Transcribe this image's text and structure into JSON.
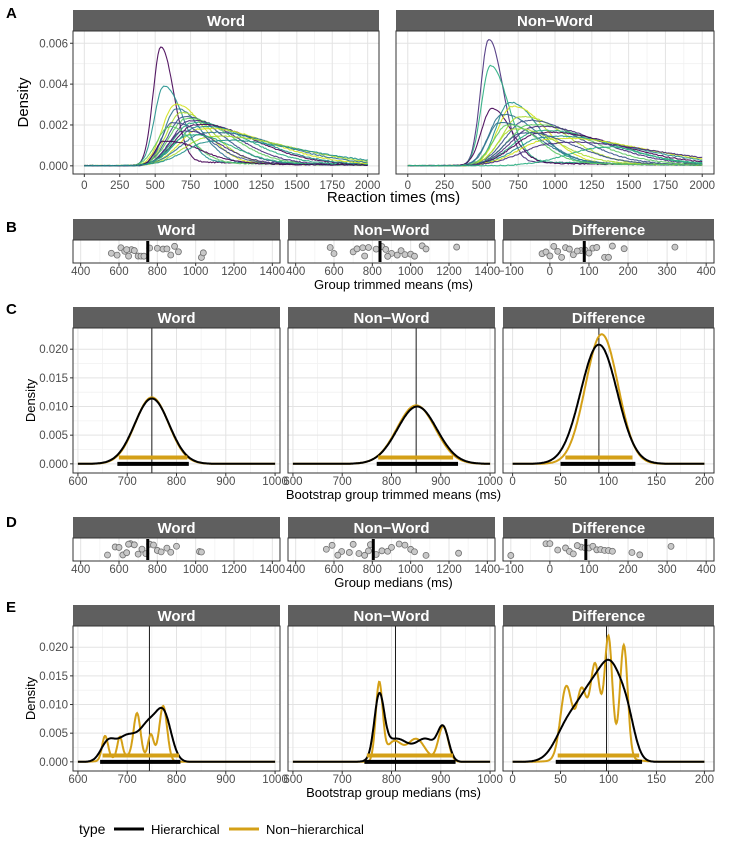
{
  "colors": {
    "strip_bg": "#5f5f5f",
    "strip_text": "#ffffff",
    "panel_border": "#333333",
    "grid_major": "#e3e3e3",
    "grid_minor": "#f1f1f1",
    "hierarchical": "#000000",
    "non_hierarchical": "#d4a017",
    "point_fill": "#c8c8c8",
    "point_stroke": "#707070",
    "viridis": [
      "#440154",
      "#472d7b",
      "#3b528b",
      "#2c728e",
      "#21918c",
      "#28ae80",
      "#5ec962",
      "#addc30",
      "#d2e21b"
    ]
  },
  "legend": {
    "title": "type",
    "items": [
      {
        "label": "Hierarchical",
        "color": "#000000"
      },
      {
        "label": "Non−hierarchical",
        "color": "#d4a017"
      }
    ]
  },
  "chart_data": [
    {
      "panel_letter": "A",
      "type": "line",
      "description_kind": "individual_densities",
      "facets": [
        "Word",
        "Non−Word"
      ],
      "xlabel": "Reaction times (ms)",
      "ylabel": "Density",
      "xlim": [
        -80,
        2080
      ],
      "ylim": [
        -0.0004,
        0.0066
      ],
      "xticks": [
        0,
        250,
        500,
        750,
        1000,
        1250,
        1500,
        1750,
        2000
      ],
      "xtick_labels": [
        "0",
        "250",
        "500",
        "750",
        "1000",
        "1250",
        "1500",
        "1750",
        "2000"
      ],
      "yticks": [
        0,
        0.002,
        0.004,
        0.006
      ],
      "ytick_labels": [
        "0.000",
        "0.002",
        "0.004",
        "0.006"
      ],
      "series_by_facet": [
        [
          {
            "mode": 540,
            "peak": 0.0058,
            "sl": 55,
            "sr": 90,
            "tail": 0.0003
          },
          {
            "mode": 560,
            "peak": 0.0039,
            "sl": 65,
            "sr": 130,
            "tail": 0.0003
          },
          {
            "mode": 640,
            "peak": 0.003,
            "sl": 90,
            "sr": 200,
            "tail": 0.0002
          },
          {
            "mode": 650,
            "peak": 0.0028,
            "sl": 85,
            "sr": 170,
            "tail": 0.0002
          },
          {
            "mode": 680,
            "peak": 0.0026,
            "sl": 100,
            "sr": 220,
            "tail": 0.0002
          },
          {
            "mode": 700,
            "peak": 0.0024,
            "sl": 110,
            "sr": 260,
            "tail": 0.0002
          },
          {
            "mode": 720,
            "peak": 0.0023,
            "sl": 120,
            "sr": 300,
            "tail": 0.0002
          },
          {
            "mode": 740,
            "peak": 0.0022,
            "sl": 120,
            "sr": 320,
            "tail": 0.0002
          },
          {
            "mode": 760,
            "peak": 0.0021,
            "sl": 130,
            "sr": 360,
            "tail": 0.0002
          },
          {
            "mode": 780,
            "peak": 0.002,
            "sl": 140,
            "sr": 400,
            "tail": 0.0002
          },
          {
            "mode": 800,
            "peak": 0.0019,
            "sl": 150,
            "sr": 420,
            "tail": 0.0002
          },
          {
            "mode": 820,
            "peak": 0.0018,
            "sl": 150,
            "sr": 460,
            "tail": 0.0002
          },
          {
            "mode": 850,
            "peak": 0.0016,
            "sl": 170,
            "sr": 500,
            "tail": 0.0002
          },
          {
            "mode": 880,
            "peak": 0.0014,
            "sl": 180,
            "sr": 550,
            "tail": 0.0002
          },
          {
            "mode": 620,
            "peak": 0.0021,
            "sl": 80,
            "sr": 240,
            "tail": 0.0002
          },
          {
            "mode": 600,
            "peak": 0.0019,
            "sl": 90,
            "sr": 160,
            "tail": 0.0002
          },
          {
            "mode": 700,
            "peak": 0.0017,
            "sl": 110,
            "sr": 240,
            "tail": 0.0002
          },
          {
            "mode": 740,
            "peak": 0.0015,
            "sl": 130,
            "sr": 280,
            "tail": 0.0002
          },
          {
            "mode": 560,
            "peak": 0.0012,
            "sl": 60,
            "sr": 240,
            "tail": 0.0002
          },
          {
            "mode": 900,
            "peak": 0.0012,
            "sl": 190,
            "sr": 600,
            "tail": 0.0002
          }
        ],
        [
          {
            "mode": 550,
            "peak": 0.0062,
            "sl": 55,
            "sr": 95,
            "tail": 0.0003
          },
          {
            "mode": 560,
            "peak": 0.0049,
            "sl": 60,
            "sr": 120,
            "tail": 0.0003
          },
          {
            "mode": 570,
            "peak": 0.0028,
            "sl": 70,
            "sr": 130,
            "tail": 0.0002
          },
          {
            "mode": 690,
            "peak": 0.0031,
            "sl": 90,
            "sr": 190,
            "tail": 0.0002
          },
          {
            "mode": 710,
            "peak": 0.0029,
            "sl": 100,
            "sr": 220,
            "tail": 0.0002
          },
          {
            "mode": 640,
            "peak": 0.0025,
            "sl": 90,
            "sr": 240,
            "tail": 0.0002
          },
          {
            "mode": 760,
            "peak": 0.0024,
            "sl": 120,
            "sr": 300,
            "tail": 0.0002
          },
          {
            "mode": 800,
            "peak": 0.0022,
            "sl": 140,
            "sr": 340,
            "tail": 0.0002
          },
          {
            "mode": 830,
            "peak": 0.002,
            "sl": 150,
            "sr": 380,
            "tail": 0.0002
          },
          {
            "mode": 860,
            "peak": 0.0019,
            "sl": 160,
            "sr": 420,
            "tail": 0.0002
          },
          {
            "mode": 880,
            "peak": 0.0017,
            "sl": 170,
            "sr": 460,
            "tail": 0.0002
          },
          {
            "mode": 900,
            "peak": 0.0016,
            "sl": 180,
            "sr": 500,
            "tail": 0.0002
          },
          {
            "mode": 930,
            "peak": 0.0014,
            "sl": 190,
            "sr": 560,
            "tail": 0.0002
          },
          {
            "mode": 960,
            "peak": 0.0013,
            "sl": 200,
            "sr": 600,
            "tail": 0.0002
          },
          {
            "mode": 620,
            "peak": 0.0021,
            "sl": 80,
            "sr": 260,
            "tail": 0.0002
          },
          {
            "mode": 720,
            "peak": 0.0018,
            "sl": 110,
            "sr": 280,
            "tail": 0.0002
          },
          {
            "mode": 780,
            "peak": 0.0016,
            "sl": 130,
            "sr": 320,
            "tail": 0.0002
          },
          {
            "mode": 680,
            "peak": 0.002,
            "sl": 100,
            "sr": 200,
            "tail": 0.0002
          },
          {
            "mode": 1000,
            "peak": 0.0011,
            "sl": 220,
            "sr": 650,
            "tail": 0.0002
          },
          {
            "mode": 1330,
            "peak": 0.0009,
            "sl": 250,
            "sr": 250,
            "tail": 0.0002
          }
        ]
      ]
    },
    {
      "panel_letter": "B",
      "type": "scatter",
      "description_kind": "strip",
      "facets": [
        "Word",
        "Non−Word",
        "Difference"
      ],
      "xlabel": "Group trimmed means (ms)",
      "facet_xlims": [
        [
          360,
          1440
        ],
        [
          360,
          1440
        ],
        [
          -120,
          420
        ]
      ],
      "facet_xticks": [
        [
          400,
          600,
          800,
          1000,
          1200,
          1400
        ],
        [
          400,
          600,
          800,
          1000,
          1200,
          1400
        ],
        [
          -100,
          0,
          100,
          200,
          300,
          400
        ]
      ],
      "facet_xtick_labels": [
        [
          "400",
          "600",
          "800",
          "1000",
          "1200",
          "1400"
        ],
        [
          "400",
          "600",
          "800",
          "1000",
          "1200",
          "1400"
        ],
        [
          "−100",
          "0",
          "100",
          "200",
          "300",
          "400"
        ]
      ],
      "facet_points": [
        [
          560,
          590,
          610,
          630,
          650,
          665,
          680,
          700,
          715,
          730,
          760,
          800,
          830,
          850,
          870,
          890,
          910,
          1030,
          1040,
          640
        ],
        [
          580,
          600,
          700,
          720,
          750,
          780,
          820,
          850,
          870,
          900,
          930,
          950,
          970,
          1000,
          1020,
          1060,
          1080,
          1240,
          760,
          880
        ],
        [
          -20,
          -10,
          0,
          10,
          20,
          30,
          40,
          50,
          60,
          80,
          90,
          100,
          110,
          120,
          140,
          150,
          160,
          190,
          320,
          70
        ]
      ],
      "facet_center": [
        750,
        840,
        88
      ]
    },
    {
      "panel_letter": "C",
      "type": "line",
      "description_kind": "bootstrap_density",
      "facets": [
        "Word",
        "Non−Word",
        "Difference"
      ],
      "xlabel": "Bootstrap group trimmed means (ms)",
      "ylabel": "Density",
      "ylim": [
        -0.0016,
        0.0237
      ],
      "yticks": [
        0,
        0.005,
        0.01,
        0.015,
        0.02
      ],
      "ytick_labels": [
        "0.000",
        "0.005",
        "0.010",
        "0.015",
        "0.020"
      ],
      "facet_xlims": [
        [
          590,
          1010
        ],
        [
          590,
          1010
        ],
        [
          -10,
          210
        ]
      ],
      "facet_xticks": [
        [
          600,
          700,
          800,
          900,
          1000
        ],
        [
          600,
          700,
          800,
          900,
          1000
        ],
        [
          0,
          50,
          100,
          150,
          200
        ]
      ],
      "facet_xtick_labels": [
        [
          "600",
          "700",
          "800",
          "900",
          "1000"
        ],
        [
          "600",
          "700",
          "800",
          "900",
          "1000"
        ],
        [
          "0",
          "50",
          "100",
          "150",
          "200"
        ]
      ],
      "facet_vline": [
        750,
        850,
        90
      ],
      "hierarchical": [
        {
          "mu": 750,
          "sd": 35,
          "peak": 0.0114
        },
        {
          "mu": 852,
          "sd": 40,
          "peak": 0.01
        },
        {
          "mu": 90,
          "sd": 19,
          "peak": 0.0208
        }
      ],
      "non_hierarchical": [
        {
          "mu": 750,
          "sd": 34,
          "peak": 0.0116
        },
        {
          "mu": 850,
          "sd": 39,
          "peak": 0.0102
        },
        {
          "mu": 93,
          "sd": 17,
          "peak": 0.0226
        }
      ],
      "intervals_hierarchical": [
        [
          680,
          825
        ],
        [
          770,
          935
        ],
        [
          50,
          128
        ]
      ],
      "intervals_non_hierarchical": [
        [
          683,
          822
        ],
        [
          773,
          925
        ],
        [
          55,
          125
        ]
      ]
    },
    {
      "panel_letter": "D",
      "type": "scatter",
      "description_kind": "strip",
      "facets": [
        "Word",
        "Non−Word",
        "Difference"
      ],
      "xlabel": "Group medians (ms)",
      "facet_xlims": [
        [
          360,
          1440
        ],
        [
          360,
          1440
        ],
        [
          -120,
          420
        ]
      ],
      "facet_xticks": [
        [
          400,
          600,
          800,
          1000,
          1200,
          1400
        ],
        [
          400,
          600,
          800,
          1000,
          1200,
          1400
        ],
        [
          -100,
          0,
          100,
          200,
          300,
          400
        ]
      ],
      "facet_xtick_labels": [
        [
          "400",
          "600",
          "800",
          "1000",
          "1200",
          "1400"
        ],
        [
          "400",
          "600",
          "800",
          "1000",
          "1200",
          "1400"
        ],
        [
          "−100",
          "0",
          "100",
          "200",
          "300",
          "400"
        ]
      ],
      "facet_points": [
        [
          540,
          580,
          600,
          620,
          640,
          660,
          680,
          700,
          720,
          740,
          760,
          780,
          800,
          820,
          850,
          870,
          900,
          1020,
          1030,
          650
        ],
        [
          560,
          590,
          640,
          680,
          700,
          730,
          760,
          790,
          820,
          850,
          880,
          900,
          940,
          970,
          1000,
          1020,
          1080,
          1250,
          620,
          780
        ],
        [
          -100,
          -10,
          0,
          20,
          40,
          50,
          60,
          80,
          90,
          100,
          110,
          120,
          130,
          140,
          150,
          160,
          210,
          230,
          310,
          70
        ]
      ],
      "facet_center": [
        750,
        805,
        92
      ]
    },
    {
      "panel_letter": "E",
      "type": "line",
      "description_kind": "bootstrap_density_multimodal",
      "facets": [
        "Word",
        "Non−Word",
        "Difference"
      ],
      "xlabel": "Bootstrap group medians (ms)",
      "ylabel": "Density",
      "ylim": [
        -0.0016,
        0.0237
      ],
      "yticks": [
        0,
        0.005,
        0.01,
        0.015,
        0.02
      ],
      "ytick_labels": [
        "0.000",
        "0.005",
        "0.010",
        "0.015",
        "0.020"
      ],
      "facet_xlims": [
        [
          590,
          1010
        ],
        [
          590,
          1010
        ],
        [
          -10,
          210
        ]
      ],
      "facet_xticks": [
        [
          600,
          700,
          800,
          900,
          1000
        ],
        [
          600,
          700,
          800,
          900,
          1000
        ],
        [
          0,
          50,
          100,
          150,
          200
        ]
      ],
      "facet_xtick_labels": [
        [
          "600",
          "700",
          "800",
          "900",
          "1000"
        ],
        [
          "600",
          "700",
          "800",
          "900",
          "1000"
        ],
        [
          "0",
          "50",
          "100",
          "150",
          "200"
        ]
      ],
      "facet_vline": [
        745,
        808,
        98
      ],
      "hierarchical": [
        [
          {
            "mu": 660,
            "sd": 14,
            "h": 0.003
          },
          {
            "mu": 700,
            "sd": 22,
            "h": 0.0045
          },
          {
            "mu": 745,
            "sd": 18,
            "h": 0.006
          },
          {
            "mu": 775,
            "sd": 15,
            "h": 0.0075
          }
        ],
        [
          {
            "mu": 775,
            "sd": 10,
            "h": 0.0105
          },
          {
            "mu": 810,
            "sd": 25,
            "h": 0.004
          },
          {
            "mu": 870,
            "sd": 20,
            "h": 0.0038
          },
          {
            "mu": 905,
            "sd": 11,
            "h": 0.0055
          }
        ],
        [
          {
            "mu": 60,
            "sd": 14,
            "h": 0.007
          },
          {
            "mu": 82,
            "sd": 12,
            "h": 0.009
          },
          {
            "mu": 103,
            "sd": 12,
            "h": 0.015
          },
          {
            "mu": 120,
            "sd": 8,
            "h": 0.005
          }
        ]
      ],
      "non_hierarchical": [
        [
          {
            "mu": 655,
            "sd": 6,
            "h": 0.0042
          },
          {
            "mu": 685,
            "sd": 5,
            "h": 0.0035
          },
          {
            "mu": 720,
            "sd": 7,
            "h": 0.0077
          },
          {
            "mu": 748,
            "sd": 6,
            "h": 0.0045
          },
          {
            "mu": 773,
            "sd": 8,
            "h": 0.0097
          },
          {
            "mu": 700,
            "sd": 30,
            "h": 0.001
          }
        ],
        [
          {
            "mu": 775,
            "sd": 7,
            "h": 0.0135
          },
          {
            "mu": 805,
            "sd": 15,
            "h": 0.0035
          },
          {
            "mu": 850,
            "sd": 18,
            "h": 0.004
          },
          {
            "mu": 905,
            "sd": 10,
            "h": 0.0062
          }
        ],
        [
          {
            "mu": 56,
            "sd": 6,
            "h": 0.0125
          },
          {
            "mu": 72,
            "sd": 5,
            "h": 0.0108
          },
          {
            "mu": 86,
            "sd": 5,
            "h": 0.015
          },
          {
            "mu": 100,
            "sd": 4,
            "h": 0.02
          },
          {
            "mu": 116,
            "sd": 4,
            "h": 0.0195
          },
          {
            "mu": 88,
            "sd": 22,
            "h": 0.002
          }
        ]
      ],
      "intervals_hierarchical": [
        [
          645,
          808
        ],
        [
          745,
          930
        ],
        [
          45,
          135
        ]
      ],
      "intervals_non_hierarchical": [
        [
          650,
          805
        ],
        [
          750,
          925
        ],
        [
          47,
          132
        ]
      ]
    }
  ]
}
